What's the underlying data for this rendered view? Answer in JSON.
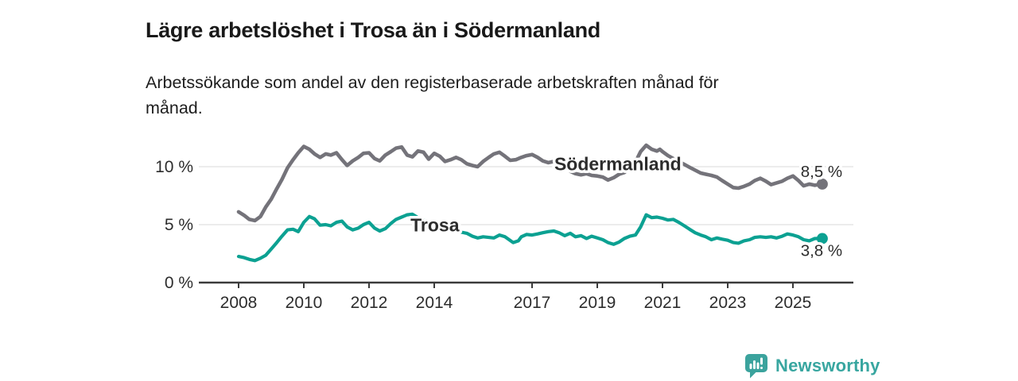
{
  "header": {
    "title": "Lägre arbetslöshet i Trosa än i Södermanland",
    "subtitle": "Arbetssökande som andel av den registerbaserade arbetskraften månad för\nmånad."
  },
  "footer": {
    "brand_name": "Newsworthy",
    "brand_color": "#38a6a0"
  },
  "colors": {
    "background": "#ffffff",
    "axis": "#3b3b3b",
    "gridline": "#d9d9d9",
    "tick_text": "#2d2d2d",
    "value_label_text": "#141414",
    "series_sodermanland": "#74737a",
    "series_trosa": "#0ca192"
  },
  "chart_data": {
    "type": "line",
    "title": "Lägre arbetslöshet i Trosa än i Södermanland",
    "subtitle": "Arbetssökande som andel av den registerbaserade arbetskraften månad för månad.",
    "unit": "% av registerbaserad arbetskraft",
    "xlabel": "",
    "ylabel": "",
    "xlim": [
      2008,
      2026
    ],
    "ylim": [
      0,
      12.5
    ],
    "grid": "horizontal",
    "legend_position": "inline-labels",
    "x_ticks": [
      2008,
      2010,
      2012,
      2014,
      2017,
      2019,
      2021,
      2023,
      2025
    ],
    "y_ticks": [
      {
        "value": 0,
        "label": "0 %"
      },
      {
        "value": 5,
        "label": "5 %"
      },
      {
        "value": 10,
        "label": "10 %"
      }
    ],
    "series": [
      {
        "name": "Södermanland",
        "color": "#74737a",
        "end_label": "8,5 %",
        "end_value": 8.5,
        "points": [
          [
            2008.0,
            6.1
          ],
          [
            2008.17,
            5.8
          ],
          [
            2008.33,
            5.45
          ],
          [
            2008.5,
            5.35
          ],
          [
            2008.67,
            5.7
          ],
          [
            2008.83,
            6.5
          ],
          [
            2009.0,
            7.2
          ],
          [
            2009.17,
            8.1
          ],
          [
            2009.33,
            8.9
          ],
          [
            2009.5,
            9.9
          ],
          [
            2009.67,
            10.6
          ],
          [
            2009.83,
            11.2
          ],
          [
            2010.0,
            11.75
          ],
          [
            2010.17,
            11.5
          ],
          [
            2010.33,
            11.1
          ],
          [
            2010.5,
            10.8
          ],
          [
            2010.67,
            11.1
          ],
          [
            2010.83,
            11.0
          ],
          [
            2011.0,
            11.2
          ],
          [
            2011.17,
            10.6
          ],
          [
            2011.33,
            10.1
          ],
          [
            2011.5,
            10.5
          ],
          [
            2011.67,
            10.8
          ],
          [
            2011.83,
            11.15
          ],
          [
            2012.0,
            11.2
          ],
          [
            2012.17,
            10.7
          ],
          [
            2012.33,
            10.5
          ],
          [
            2012.5,
            11.0
          ],
          [
            2012.67,
            11.3
          ],
          [
            2012.83,
            11.6
          ],
          [
            2013.0,
            11.7
          ],
          [
            2013.17,
            11.0
          ],
          [
            2013.33,
            10.85
          ],
          [
            2013.5,
            11.35
          ],
          [
            2013.67,
            11.25
          ],
          [
            2013.83,
            10.65
          ],
          [
            2014.0,
            11.15
          ],
          [
            2014.17,
            10.9
          ],
          [
            2014.33,
            10.45
          ],
          [
            2014.5,
            10.6
          ],
          [
            2014.67,
            10.8
          ],
          [
            2014.83,
            10.6
          ],
          [
            2015.0,
            10.25
          ],
          [
            2015.17,
            10.1
          ],
          [
            2015.33,
            10.0
          ],
          [
            2015.5,
            10.45
          ],
          [
            2015.67,
            10.8
          ],
          [
            2015.83,
            11.1
          ],
          [
            2016.0,
            11.25
          ],
          [
            2016.17,
            10.9
          ],
          [
            2016.33,
            10.55
          ],
          [
            2016.5,
            10.6
          ],
          [
            2016.67,
            10.8
          ],
          [
            2016.83,
            10.95
          ],
          [
            2017.0,
            11.05
          ],
          [
            2017.17,
            10.8
          ],
          [
            2017.33,
            10.5
          ],
          [
            2017.5,
            10.35
          ],
          [
            2017.67,
            10.45
          ],
          [
            2017.83,
            10.5
          ],
          [
            2018.0,
            10.45
          ],
          [
            2018.17,
            9.6
          ],
          [
            2018.33,
            9.4
          ],
          [
            2018.5,
            9.3
          ],
          [
            2018.67,
            9.4
          ],
          [
            2018.83,
            9.25
          ],
          [
            2019.0,
            9.2
          ],
          [
            2019.17,
            9.1
          ],
          [
            2019.33,
            8.85
          ],
          [
            2019.5,
            9.05
          ],
          [
            2019.67,
            9.35
          ],
          [
            2019.83,
            9.5
          ],
          [
            2020.0,
            9.9
          ],
          [
            2020.17,
            10.4
          ],
          [
            2020.33,
            11.3
          ],
          [
            2020.5,
            11.85
          ],
          [
            2020.67,
            11.5
          ],
          [
            2020.83,
            11.35
          ],
          [
            2020.92,
            11.5
          ],
          [
            2021.0,
            11.3
          ],
          [
            2021.17,
            10.95
          ],
          [
            2021.33,
            10.7
          ],
          [
            2021.5,
            10.45
          ],
          [
            2021.67,
            10.2
          ],
          [
            2021.83,
            9.95
          ],
          [
            2022.0,
            9.7
          ],
          [
            2022.17,
            9.45
          ],
          [
            2022.33,
            9.35
          ],
          [
            2022.5,
            9.25
          ],
          [
            2022.67,
            9.1
          ],
          [
            2022.83,
            8.8
          ],
          [
            2023.0,
            8.5
          ],
          [
            2023.17,
            8.2
          ],
          [
            2023.33,
            8.15
          ],
          [
            2023.5,
            8.3
          ],
          [
            2023.67,
            8.5
          ],
          [
            2023.83,
            8.8
          ],
          [
            2024.0,
            9.0
          ],
          [
            2024.17,
            8.75
          ],
          [
            2024.33,
            8.45
          ],
          [
            2024.5,
            8.6
          ],
          [
            2024.67,
            8.75
          ],
          [
            2024.83,
            9.0
          ],
          [
            2025.0,
            9.2
          ],
          [
            2025.17,
            8.8
          ],
          [
            2025.33,
            8.35
          ],
          [
            2025.5,
            8.5
          ],
          [
            2025.67,
            8.4
          ],
          [
            2025.9,
            8.5
          ]
        ]
      },
      {
        "name": "Trosa",
        "color": "#0ca192",
        "end_label": "3,8 %",
        "end_value": 3.8,
        "points": [
          [
            2008.0,
            2.25
          ],
          [
            2008.17,
            2.15
          ],
          [
            2008.33,
            2.0
          ],
          [
            2008.5,
            1.9
          ],
          [
            2008.67,
            2.1
          ],
          [
            2008.83,
            2.35
          ],
          [
            2009.0,
            2.9
          ],
          [
            2009.17,
            3.45
          ],
          [
            2009.33,
            4.0
          ],
          [
            2009.5,
            4.55
          ],
          [
            2009.67,
            4.6
          ],
          [
            2009.83,
            4.4
          ],
          [
            2010.0,
            5.2
          ],
          [
            2010.17,
            5.7
          ],
          [
            2010.33,
            5.5
          ],
          [
            2010.5,
            4.95
          ],
          [
            2010.67,
            5.0
          ],
          [
            2010.83,
            4.9
          ],
          [
            2011.0,
            5.2
          ],
          [
            2011.17,
            5.3
          ],
          [
            2011.33,
            4.8
          ],
          [
            2011.5,
            4.55
          ],
          [
            2011.67,
            4.7
          ],
          [
            2011.83,
            5.0
          ],
          [
            2012.0,
            5.2
          ],
          [
            2012.17,
            4.7
          ],
          [
            2012.33,
            4.45
          ],
          [
            2012.5,
            4.65
          ],
          [
            2012.67,
            5.1
          ],
          [
            2012.83,
            5.45
          ],
          [
            2013.0,
            5.65
          ],
          [
            2013.17,
            5.85
          ],
          [
            2013.33,
            5.9
          ],
          [
            2013.5,
            5.6
          ],
          [
            2013.67,
            5.4
          ],
          [
            2013.83,
            5.2
          ],
          [
            2014.0,
            5.0
          ],
          [
            2014.17,
            4.85
          ],
          [
            2014.33,
            4.7
          ],
          [
            2014.5,
            4.6
          ],
          [
            2014.67,
            4.5
          ],
          [
            2014.83,
            4.35
          ],
          [
            2015.0,
            4.25
          ],
          [
            2015.17,
            4.0
          ],
          [
            2015.33,
            3.85
          ],
          [
            2015.5,
            3.95
          ],
          [
            2015.67,
            3.9
          ],
          [
            2015.83,
            3.85
          ],
          [
            2016.0,
            4.1
          ],
          [
            2016.17,
            3.95
          ],
          [
            2016.42,
            3.45
          ],
          [
            2016.58,
            3.6
          ],
          [
            2016.67,
            3.95
          ],
          [
            2016.83,
            4.15
          ],
          [
            2017.0,
            4.1
          ],
          [
            2017.17,
            4.2
          ],
          [
            2017.33,
            4.3
          ],
          [
            2017.5,
            4.4
          ],
          [
            2017.67,
            4.45
          ],
          [
            2017.83,
            4.3
          ],
          [
            2018.0,
            4.05
          ],
          [
            2018.17,
            4.25
          ],
          [
            2018.33,
            3.95
          ],
          [
            2018.5,
            4.05
          ],
          [
            2018.67,
            3.8
          ],
          [
            2018.83,
            4.0
          ],
          [
            2019.0,
            3.85
          ],
          [
            2019.17,
            3.7
          ],
          [
            2019.33,
            3.45
          ],
          [
            2019.5,
            3.3
          ],
          [
            2019.67,
            3.5
          ],
          [
            2019.83,
            3.8
          ],
          [
            2020.0,
            4.0
          ],
          [
            2020.17,
            4.1
          ],
          [
            2020.33,
            4.8
          ],
          [
            2020.5,
            5.85
          ],
          [
            2020.67,
            5.6
          ],
          [
            2020.83,
            5.65
          ],
          [
            2021.0,
            5.55
          ],
          [
            2021.17,
            5.4
          ],
          [
            2021.33,
            5.45
          ],
          [
            2021.5,
            5.2
          ],
          [
            2021.67,
            4.9
          ],
          [
            2021.83,
            4.6
          ],
          [
            2022.0,
            4.3
          ],
          [
            2022.17,
            4.1
          ],
          [
            2022.33,
            3.95
          ],
          [
            2022.5,
            3.7
          ],
          [
            2022.67,
            3.85
          ],
          [
            2022.83,
            3.75
          ],
          [
            2023.0,
            3.65
          ],
          [
            2023.17,
            3.45
          ],
          [
            2023.33,
            3.4
          ],
          [
            2023.5,
            3.6
          ],
          [
            2023.67,
            3.7
          ],
          [
            2023.83,
            3.9
          ],
          [
            2024.0,
            3.95
          ],
          [
            2024.17,
            3.9
          ],
          [
            2024.33,
            3.95
          ],
          [
            2024.5,
            3.85
          ],
          [
            2024.67,
            4.0
          ],
          [
            2024.83,
            4.2
          ],
          [
            2025.0,
            4.1
          ],
          [
            2025.17,
            3.95
          ],
          [
            2025.33,
            3.7
          ],
          [
            2025.5,
            3.6
          ],
          [
            2025.67,
            3.8
          ],
          [
            2025.9,
            3.8
          ]
        ]
      }
    ]
  }
}
